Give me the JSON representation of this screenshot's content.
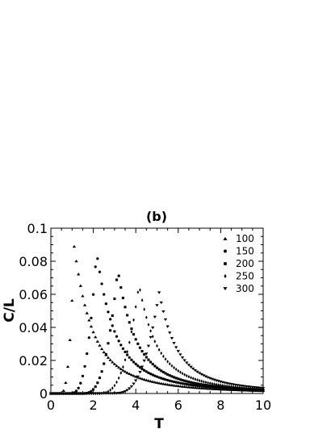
{
  "chart_data": {
    "type": "scatter",
    "title": "(b)",
    "xlabel": "T",
    "ylabel": "C/L",
    "xlim": [
      0,
      10
    ],
    "ylim": [
      0,
      0.1
    ],
    "xticks": [
      "0",
      "2",
      "4",
      "6",
      "8",
      "10"
    ],
    "yticks": [
      "0",
      "0.02",
      "0.04",
      "0.06",
      "0.08",
      "0.1"
    ],
    "grid": false,
    "legend_position": "top-right",
    "series": [
      {
        "name": "100",
        "marker": "triangle-up",
        "peak_T": 1.1,
        "peak_C": 0.089,
        "onset_T": 0.35,
        "tail_scale": 1.0
      },
      {
        "name": "150",
        "marker": "circle",
        "peak_T": 2.15,
        "peak_C": 0.086,
        "onset_T": 0.75,
        "tail_scale": 1.0
      },
      {
        "name": "200",
        "marker": "square",
        "peak_T": 3.15,
        "peak_C": 0.075,
        "onset_T": 1.3,
        "tail_scale": 1.0
      },
      {
        "name": "250",
        "marker": "diamond",
        "peak_T": 4.15,
        "peak_C": 0.066,
        "onset_T": 2.0,
        "tail_scale": 1.0
      },
      {
        "name": "300",
        "marker": "triangle-down",
        "peak_T": 5.1,
        "peak_C": 0.061,
        "onset_T": 2.7,
        "tail_scale": 1.0
      }
    ]
  }
}
